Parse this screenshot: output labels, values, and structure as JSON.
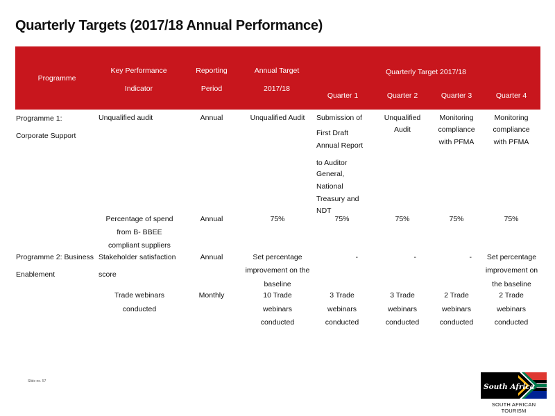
{
  "title": "Quarterly Targets (2017/18  Annual Performance)",
  "header": {
    "programme": "Programme",
    "kpi_line1": "Key Performance",
    "kpi_line2": "Indicator",
    "period_line1": "Reporting",
    "period_line2": "Period",
    "annual_line1": "Annual Target",
    "annual_line2": "2017/18",
    "quarterly_group": "Quarterly Target 2017/18",
    "q1": "Quarter 1",
    "q2": "Quarter 2",
    "q3": "Quarter 3",
    "q4": "Quarter 4"
  },
  "rows": {
    "p1": {
      "programme_line1": "Programme 1:",
      "programme_line2": "Corporate Support",
      "kpi": "Unqualified audit",
      "period": "Annual",
      "annual": "Unqualified Audit",
      "q1": [
        "Submission of",
        "First Draft",
        "Annual Report",
        "to Auditor",
        "General,",
        "National",
        "Treasury and",
        "NDT"
      ],
      "q2": [
        "Unqualified",
        "Audit"
      ],
      "q3": [
        "Monitoring",
        "compliance",
        "with PFMA"
      ],
      "q4": [
        "Monitoring",
        "compliance",
        "with PFMA"
      ]
    },
    "p1b": {
      "kpi": [
        "Percentage of  spend",
        "from B- BBEE",
        "compliant suppliers"
      ],
      "period": "Annual",
      "annual": "75%",
      "q1": "75%",
      "q2": "75%",
      "q3": "75%",
      "q4": "75%"
    },
    "p2": {
      "programme_line1": "Programme 2: Business",
      "programme_line2": "Enablement",
      "kpi_line1": "Stakeholder satisfaction",
      "kpi_line2": "score",
      "period": "Annual",
      "annual": [
        "Set percentage",
        "improvement on the",
        "baseline"
      ],
      "q1": "-",
      "q2": "-",
      "q3": "-",
      "q4": [
        "Set percentage",
        "improvement on",
        "the baseline"
      ]
    },
    "p2b": {
      "kpi": [
        "Trade webinars",
        "conducted"
      ],
      "period": "Monthly",
      "annual": [
        "10 Trade",
        "webinars",
        "conducted"
      ],
      "q1": [
        "3 Trade",
        "webinars",
        "conducted"
      ],
      "q2": [
        "3 Trade",
        "webinars",
        "conducted"
      ],
      "q3": [
        "2 Trade",
        "webinars",
        "conducted"
      ],
      "q4": [
        "2 Trade",
        "webinars",
        "conducted"
      ]
    }
  },
  "footer": {
    "slide_no": "Slide no. 57",
    "logo_script": "South Africa",
    "logo_caption": "SOUTH AFRICAN TOURISM"
  }
}
